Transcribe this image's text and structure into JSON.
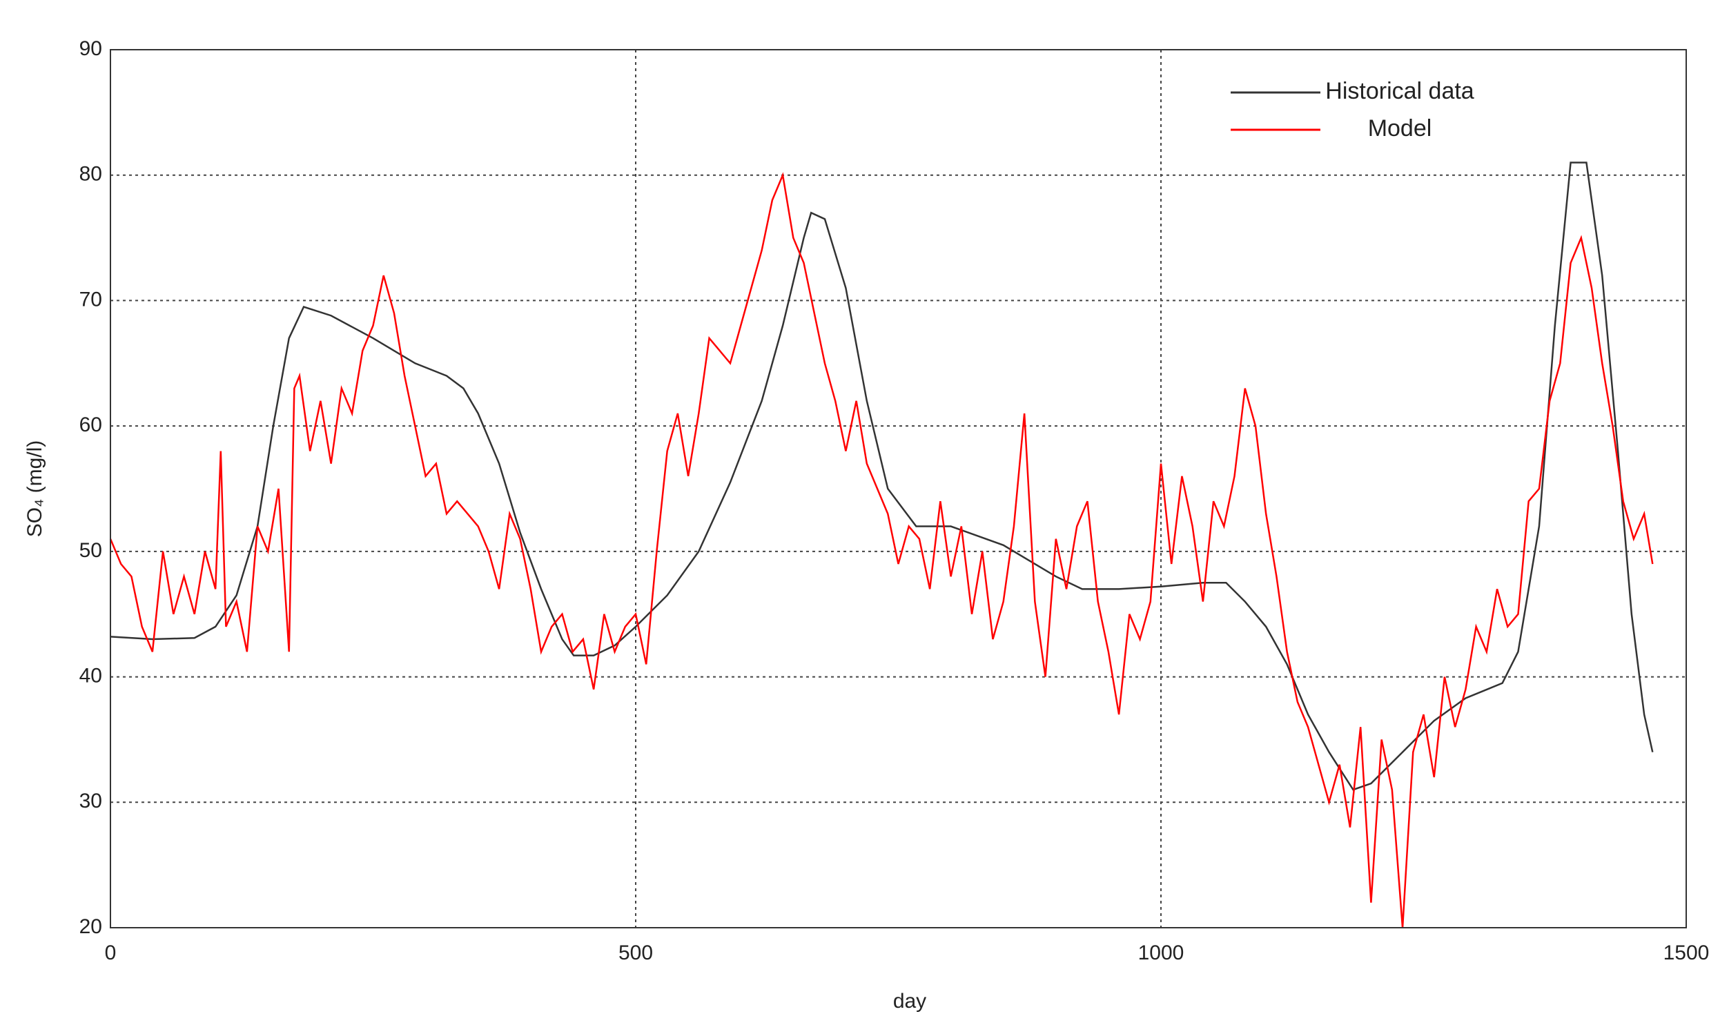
{
  "chart_data": {
    "type": "line",
    "xlabel": "day",
    "ylabel": "SO₄ (mg/l)",
    "xlim": [
      0,
      1500
    ],
    "ylim": [
      20,
      90
    ],
    "xticks": [
      0,
      500,
      1000,
      1500
    ],
    "yticks": [
      20,
      30,
      40,
      50,
      60,
      70,
      80,
      90
    ],
    "grid": true,
    "legend": "upper right",
    "series": [
      {
        "name": "Historical data",
        "color": "#333333",
        "x": [
          0,
          40,
          80,
          100,
          120,
          140,
          155,
          170,
          184,
          210,
          250,
          290,
          320,
          336,
          350,
          370,
          390,
          410,
          430,
          441,
          460,
          480,
          500,
          530,
          560,
          590,
          620,
          640,
          660,
          667,
          680,
          700,
          720,
          740,
          767,
          800,
          850,
          900,
          925,
          960,
          1000,
          1040,
          1062,
          1080,
          1100,
          1120,
          1140,
          1160,
          1183,
          1200,
          1230,
          1260,
          1290,
          1325,
          1340,
          1360,
          1375,
          1390,
          1405,
          1420,
          1435,
          1448,
          1460,
          1468
        ],
        "values": [
          43.2,
          43,
          43.1,
          44,
          46.5,
          52,
          60,
          67,
          69.5,
          68.8,
          67,
          65,
          64,
          63,
          61,
          57,
          51.5,
          47,
          43,
          41.7,
          41.7,
          42.5,
          44,
          46.5,
          50,
          55.5,
          62,
          68,
          75,
          77,
          76.5,
          71,
          62,
          55,
          52,
          52,
          50.5,
          48,
          47,
          47,
          47.2,
          47.5,
          47.5,
          46,
          44,
          41,
          37,
          34,
          31,
          31.5,
          34,
          36.5,
          38.3,
          39.5,
          42,
          52,
          68,
          81,
          81,
          72,
          58,
          45,
          37,
          34
        ]
      },
      {
        "name": "Model",
        "color": "#ff0000",
        "x": [
          0,
          10,
          20,
          30,
          40,
          50,
          60,
          70,
          80,
          90,
          100,
          105,
          110,
          120,
          130,
          140,
          150,
          160,
          170,
          175,
          180,
          190,
          200,
          210,
          220,
          230,
          240,
          250,
          260,
          270,
          280,
          290,
          300,
          310,
          320,
          330,
          340,
          350,
          360,
          370,
          380,
          390,
          400,
          410,
          420,
          430,
          440,
          450,
          460,
          470,
          480,
          490,
          500,
          510,
          520,
          530,
          540,
          550,
          560,
          570,
          580,
          590,
          600,
          610,
          620,
          630,
          640,
          650,
          660,
          670,
          680,
          690,
          700,
          710,
          720,
          730,
          740,
          750,
          760,
          770,
          780,
          790,
          800,
          810,
          820,
          830,
          840,
          850,
          860,
          870,
          880,
          890,
          900,
          910,
          920,
          930,
          940,
          950,
          960,
          970,
          980,
          990,
          1000,
          1010,
          1020,
          1030,
          1040,
          1050,
          1060,
          1070,
          1080,
          1090,
          1100,
          1110,
          1120,
          1130,
          1140,
          1150,
          1160,
          1170,
          1180,
          1190,
          1200,
          1210,
          1220,
          1230,
          1240,
          1250,
          1260,
          1270,
          1280,
          1290,
          1300,
          1310,
          1320,
          1330,
          1340,
          1350,
          1360,
          1370,
          1380,
          1390,
          1400,
          1410,
          1420,
          1430,
          1440,
          1450,
          1460,
          1468
        ],
        "values": [
          51,
          49,
          48,
          44,
          42,
          50,
          45,
          48,
          45,
          50,
          47,
          58,
          44,
          46,
          42,
          52,
          50,
          55,
          42,
          63,
          64,
          58,
          62,
          57,
          63,
          61,
          66,
          68,
          72,
          69,
          64,
          60,
          56,
          57,
          53,
          54,
          53,
          52,
          50,
          47,
          53,
          51,
          47,
          42,
          44,
          45,
          42,
          43,
          39,
          45,
          42,
          44,
          45,
          41,
          50,
          58,
          61,
          56,
          61,
          67,
          66,
          65,
          68,
          71,
          74,
          78,
          80,
          75,
          73,
          69,
          65,
          62,
          58,
          62,
          57,
          55,
          53,
          49,
          52,
          51,
          47,
          54,
          48,
          52,
          45,
          50,
          43,
          46,
          52,
          61,
          46,
          40,
          51,
          47,
          52,
          54,
          46,
          42,
          37,
          45,
          43,
          46,
          57,
          49,
          56,
          52,
          46,
          54,
          52,
          56,
          63,
          60,
          53,
          48,
          42,
          38,
          36,
          33,
          30,
          33,
          28,
          36,
          22,
          35,
          31,
          20,
          34,
          37,
          32,
          40,
          36,
          39,
          44,
          42,
          47,
          44,
          45,
          54,
          55,
          62,
          65,
          73,
          75,
          71,
          65,
          60,
          54,
          51,
          53,
          49
        ]
      }
    ]
  }
}
